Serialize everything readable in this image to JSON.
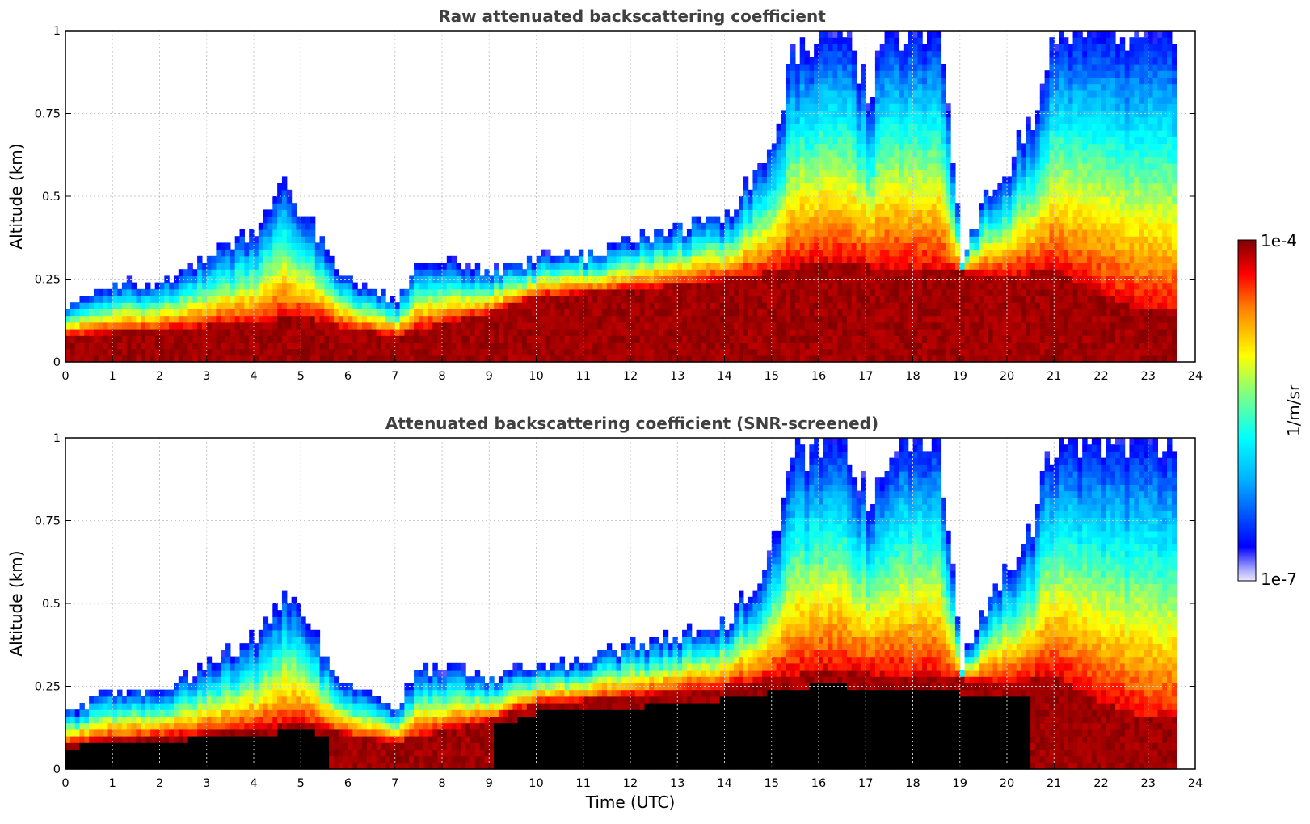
{
  "chart_data": [
    {
      "type": "heatmap",
      "title": "Raw attenuated backscattering coefficient",
      "xlabel": "",
      "ylabel": "Altitude (km)",
      "xlim": [
        0,
        24
      ],
      "ylim": [
        0,
        1
      ],
      "x_ticks": [
        "0",
        "1",
        "2",
        "3",
        "4",
        "5",
        "6",
        "7",
        "8",
        "9",
        "10",
        "11",
        "12",
        "13",
        "14",
        "15",
        "16",
        "17",
        "18",
        "19",
        "20",
        "21",
        "22",
        "23",
        "24"
      ],
      "y_ticks": [
        "0",
        "0.25",
        "0.5",
        "0.75",
        "1"
      ],
      "grid": true,
      "data_end_hour": 23.55,
      "screened": false
    },
    {
      "type": "heatmap",
      "title": "Attenuated backscattering coefficient (SNR-screened)",
      "xlabel": "Time (UTC)",
      "ylabel": "Altitude (km)",
      "xlim": [
        0,
        24
      ],
      "ylim": [
        0,
        1
      ],
      "x_ticks": [
        "0",
        "1",
        "2",
        "3",
        "4",
        "5",
        "6",
        "7",
        "8",
        "9",
        "10",
        "11",
        "12",
        "13",
        "14",
        "15",
        "16",
        "17",
        "18",
        "19",
        "20",
        "21",
        "22",
        "23",
        "24"
      ],
      "y_ticks": [
        "0",
        "0.25",
        "0.5",
        "0.75",
        "1"
      ],
      "grid": true,
      "data_end_hour": 23.55,
      "screened": true
    }
  ],
  "colorbar": {
    "label": "1/m/sr",
    "max_label": "1e-4",
    "min_label": "1e-7",
    "scale": "log",
    "range": [
      1e-07,
      0.0001
    ]
  }
}
